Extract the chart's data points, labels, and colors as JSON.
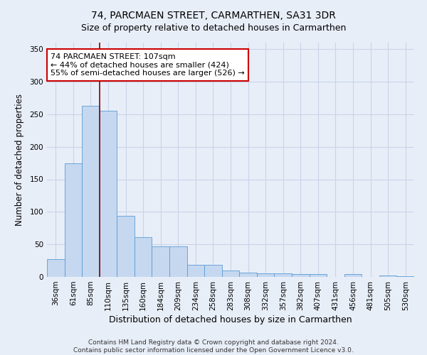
{
  "title": "74, PARCMAEN STREET, CARMARTHEN, SA31 3DR",
  "subtitle": "Size of property relative to detached houses in Carmarthen",
  "xlabel": "Distribution of detached houses by size in Carmarthen",
  "ylabel": "Number of detached properties",
  "footer_line1": "Contains HM Land Registry data © Crown copyright and database right 2024.",
  "footer_line2": "Contains public sector information licensed under the Open Government Licence v3.0.",
  "categories": [
    "36sqm",
    "61sqm",
    "85sqm",
    "110sqm",
    "135sqm",
    "160sqm",
    "184sqm",
    "209sqm",
    "234sqm",
    "258sqm",
    "283sqm",
    "308sqm",
    "332sqm",
    "357sqm",
    "382sqm",
    "407sqm",
    "431sqm",
    "456sqm",
    "481sqm",
    "505sqm",
    "530sqm"
  ],
  "values": [
    27,
    175,
    263,
    255,
    94,
    61,
    47,
    47,
    19,
    19,
    10,
    7,
    5,
    5,
    4,
    4,
    0,
    4,
    0,
    2,
    1
  ],
  "bar_color": "#c5d8f0",
  "bar_edge_color": "#5b9bd5",
  "property_line_index": 2.5,
  "property_line_color": "#8b0000",
  "annotation_line1": "74 PARCMAEN STREET: 107sqm",
  "annotation_line2": "← 44% of detached houses are smaller (424)",
  "annotation_line3": "55% of semi-detached houses are larger (526) →",
  "annotation_box_color": "#ffffff",
  "annotation_box_edge_color": "#cc0000",
  "ylim": [
    0,
    360
  ],
  "yticks": [
    0,
    50,
    100,
    150,
    200,
    250,
    300,
    350
  ],
  "fig_background_color": "#e8eef8",
  "plot_background": "#e8eef8",
  "grid_color": "#c8d4e8",
  "title_fontsize": 10,
  "subtitle_fontsize": 9,
  "xlabel_fontsize": 9,
  "ylabel_fontsize": 8.5,
  "tick_fontsize": 7.5,
  "annotation_fontsize": 8,
  "footer_fontsize": 6.5
}
